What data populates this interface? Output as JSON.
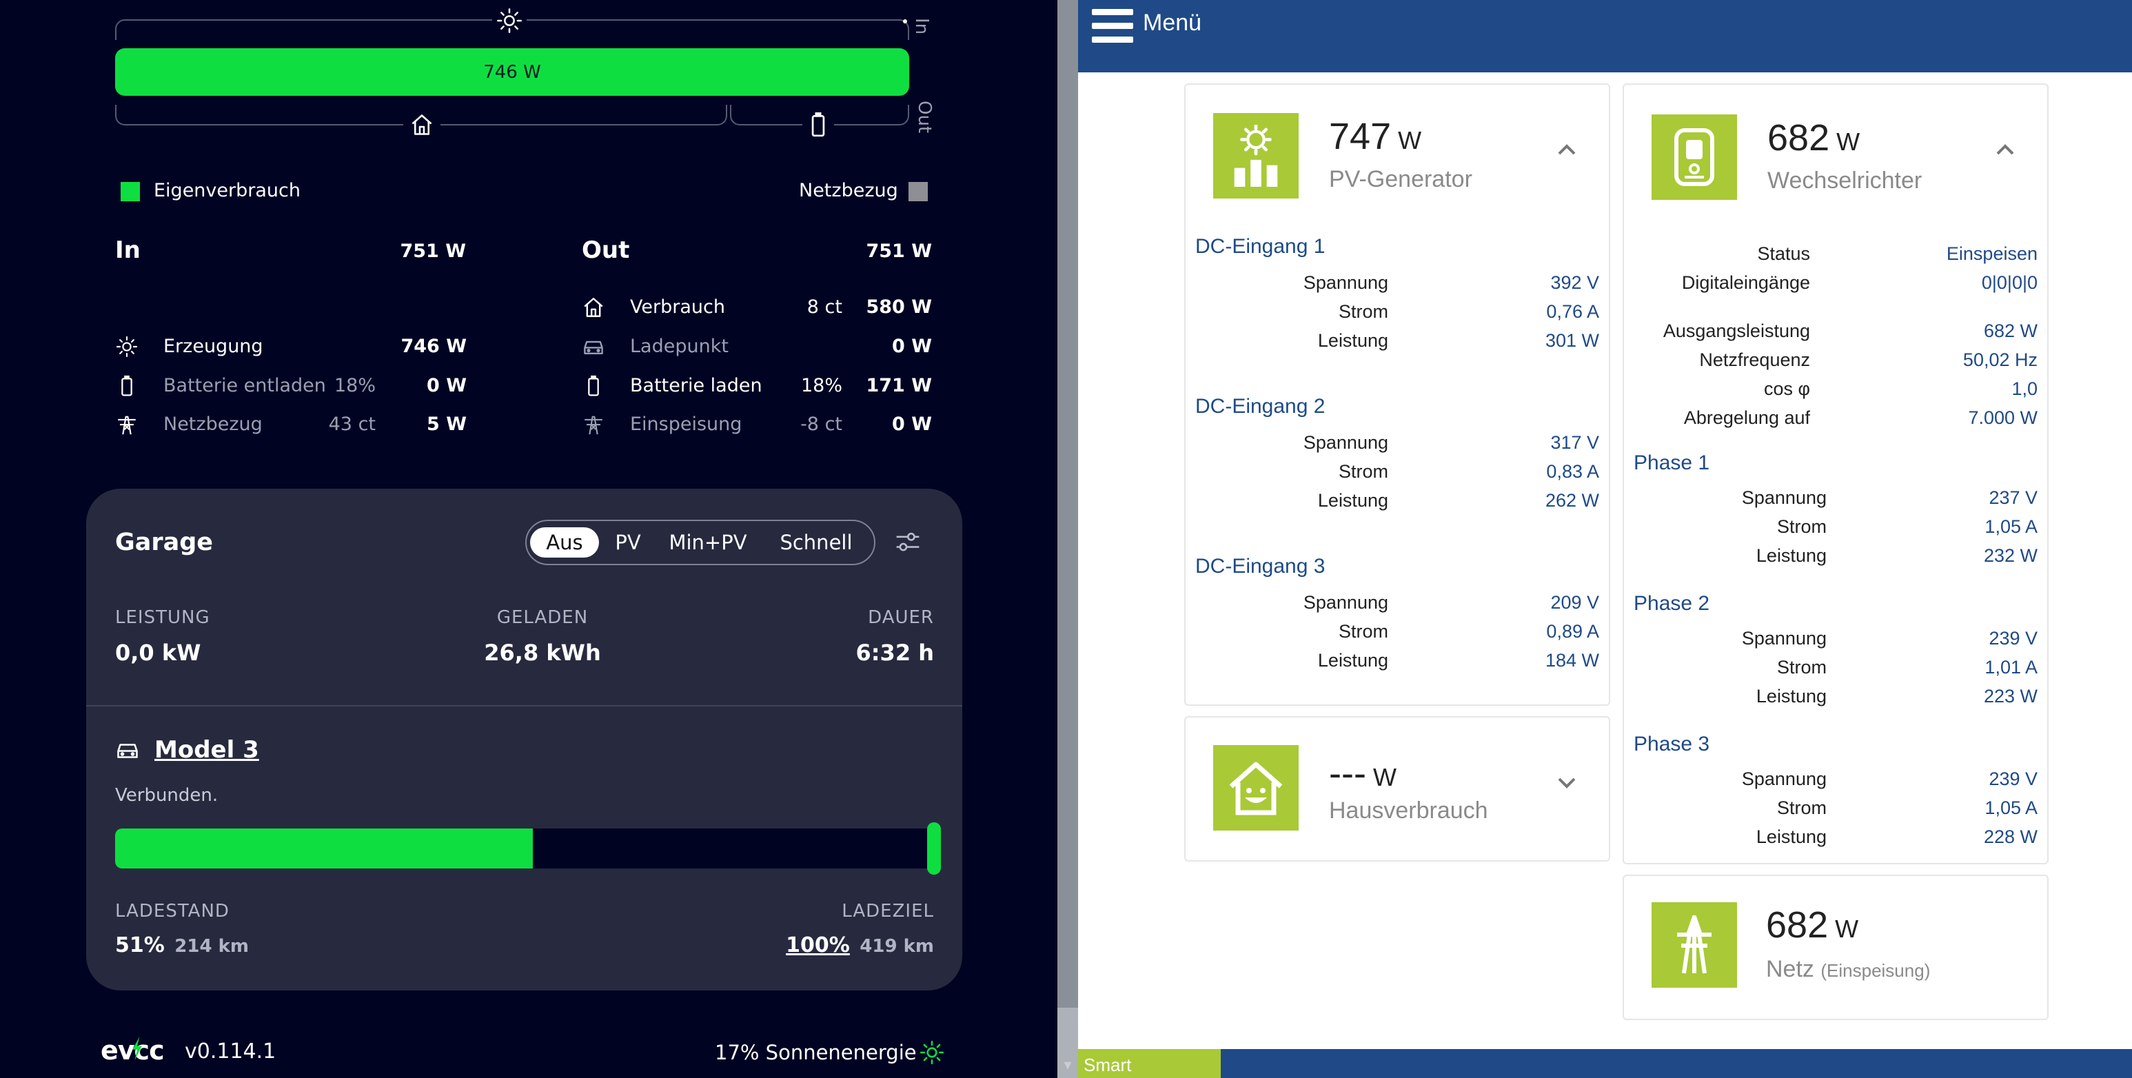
{
  "evcc": {
    "flow": {
      "bar_value": "746 W",
      "in_label": "In",
      "out_label": "Out"
    },
    "legend": {
      "self": "Eigenverbrauch",
      "grid": "Netzbezug"
    },
    "in": {
      "title": "In",
      "total": "751 W",
      "rows": [
        {
          "label": "Erzeugung",
          "pct": "",
          "value": "746 W",
          "icon": "sun-icon",
          "dim": false
        },
        {
          "label": "Batterie entladen",
          "pct": "18%",
          "value": "0 W",
          "icon": "battery-icon",
          "dim": true
        },
        {
          "label": "Netzbezug",
          "pct": "43 ct",
          "value": "5 W",
          "icon": "power-tower-icon",
          "dim": true
        }
      ]
    },
    "out": {
      "title": "Out",
      "total": "751 W",
      "rows": [
        {
          "label": "Verbrauch",
          "pct": "8 ct",
          "value": "580 W",
          "icon": "house-icon",
          "dim": false
        },
        {
          "label": "Ladepunkt",
          "pct": "",
          "value": "0 W",
          "icon": "car-icon",
          "dim": true
        },
        {
          "label": "Batterie laden",
          "pct": "18%",
          "value": "171 W",
          "icon": "battery-icon",
          "dim": false
        },
        {
          "label": "Einspeisung",
          "pct": "-8 ct",
          "value": "0 W",
          "icon": "power-tower-icon",
          "dim": true
        }
      ]
    },
    "loadpoint": {
      "title": "Garage",
      "modes": [
        "Aus",
        "PV",
        "Min+PV",
        "Schnell"
      ],
      "active_mode": "Aus",
      "power_label": "LEISTUNG",
      "power_value": "0,0 kW",
      "charged_label": "GELADEN",
      "charged_value": "26,8 kWh",
      "duration_label": "DAUER",
      "duration_value": "6:32 h",
      "vehicle_name": "Model 3",
      "vehicle_status": "Verbunden.",
      "soc_fraction": 0.51,
      "soc_label": "LADESTAND",
      "soc_value": "51%",
      "soc_range": "214 km",
      "target_label": "LADEZIEL",
      "target_value": "100%",
      "target_range": "419 km"
    },
    "footer": {
      "logo": "evcc",
      "version": "v0.114.1",
      "solar": "17% Sonnenenergie"
    },
    "colors": {
      "green": "#0fde41",
      "bg": "#010322",
      "card": "#272a3e"
    }
  },
  "inverter": {
    "menu_label": "Menü",
    "pv": {
      "value": "747",
      "unit": "W",
      "label": "PV-Generator",
      "inputs": [
        {
          "title": "DC-Eingang 1",
          "rows": [
            [
              "Spannung",
              "392 V"
            ],
            [
              "Strom",
              "0,76 A"
            ],
            [
              "Leistung",
              "301 W"
            ]
          ]
        },
        {
          "title": "DC-Eingang 2",
          "rows": [
            [
              "Spannung",
              "317 V"
            ],
            [
              "Strom",
              "0,83 A"
            ],
            [
              "Leistung",
              "262 W"
            ]
          ]
        },
        {
          "title": "DC-Eingang 3",
          "rows": [
            [
              "Spannung",
              "209 V"
            ],
            [
              "Strom",
              "0,89 A"
            ],
            [
              "Leistung",
              "184 W"
            ]
          ]
        }
      ]
    },
    "house": {
      "value": "---",
      "unit": "W",
      "label": "Hausverbrauch"
    },
    "wr": {
      "value": "682",
      "unit": "W",
      "label": "Wechselrichter",
      "status_rows": [
        [
          "Status",
          "Einspeisen"
        ],
        [
          "Digitaleingänge",
          "0|0|0|0"
        ]
      ],
      "out_rows": [
        [
          "Ausgangsleistung",
          "682 W"
        ],
        [
          "Netzfrequenz",
          "50,02 Hz"
        ],
        [
          "cos φ",
          "1,0"
        ],
        [
          "Abregelung auf",
          "7.000 W"
        ]
      ],
      "phases": [
        {
          "title": "Phase 1",
          "rows": [
            [
              "Spannung",
              "237 V"
            ],
            [
              "Strom",
              "1,05 A"
            ],
            [
              "Leistung",
              "232 W"
            ]
          ]
        },
        {
          "title": "Phase 2",
          "rows": [
            [
              "Spannung",
              "239 V"
            ],
            [
              "Strom",
              "1,01 A"
            ],
            [
              "Leistung",
              "223 W"
            ]
          ]
        },
        {
          "title": "Phase 3",
          "rows": [
            [
              "Spannung",
              "239 V"
            ],
            [
              "Strom",
              "1,05 A"
            ],
            [
              "Leistung",
              "228 W"
            ]
          ]
        }
      ]
    },
    "grid": {
      "value": "682",
      "unit": "W",
      "label": "Netz",
      "sub": "(Einspeisung)"
    },
    "smart_label": "Smart",
    "colors": {
      "blue": "#1f4a87",
      "tile": "#a9c936"
    }
  }
}
